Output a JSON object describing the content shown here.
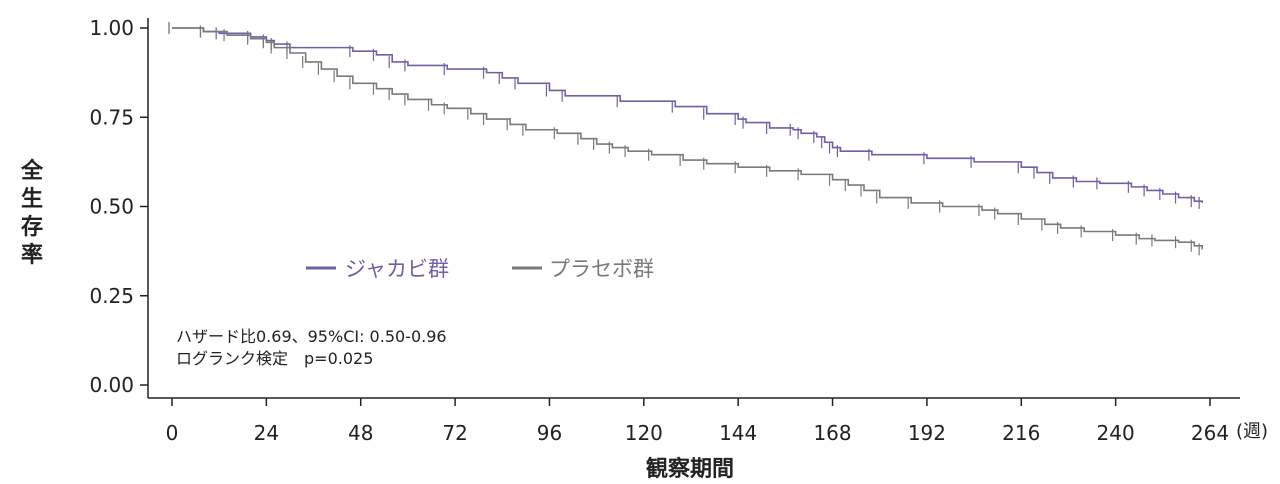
{
  "chart_data": {
    "type": "line",
    "xlabel": "観察期間",
    "xunit": "(週)",
    "ylabel": "全生存率",
    "xlim": [
      0,
      264
    ],
    "ylim": [
      0,
      1
    ],
    "xticks": [
      0,
      24,
      48,
      72,
      96,
      120,
      144,
      168,
      192,
      216,
      240,
      264
    ],
    "yticks": [
      0.0,
      0.25,
      0.5,
      0.75,
      1.0
    ],
    "ytick_labels": [
      "0.00",
      "0.25",
      "0.50",
      "0.75",
      "1.00"
    ],
    "legend_placement": "middle-left",
    "annotations": [
      "ハザード比0.69、95%CI: 0.50-0.96",
      "ログランク検定　p=0.025"
    ],
    "series": [
      {
        "name": "ジャカビ群",
        "color": "#6b62a6",
        "x": [
          0,
          8,
          12,
          20,
          24,
          26,
          30,
          46,
          52,
          56,
          60,
          70,
          80,
          84,
          88,
          96,
          100,
          114,
          128,
          136,
          144,
          146,
          152,
          158,
          160,
          164,
          166,
          168,
          170,
          178,
          192,
          204,
          216,
          220,
          224,
          230,
          236,
          244,
          248,
          252,
          256,
          260,
          262
        ],
        "y": [
          1.0,
          0.99,
          0.985,
          0.975,
          0.965,
          0.955,
          0.945,
          0.935,
          0.925,
          0.905,
          0.895,
          0.885,
          0.875,
          0.86,
          0.845,
          0.825,
          0.81,
          0.795,
          0.78,
          0.76,
          0.745,
          0.735,
          0.72,
          0.715,
          0.705,
          0.695,
          0.68,
          0.665,
          0.655,
          0.645,
          0.635,
          0.625,
          0.61,
          0.595,
          0.58,
          0.57,
          0.565,
          0.555,
          0.545,
          0.535,
          0.525,
          0.515,
          0.51
        ]
      },
      {
        "name": "プラセボ群",
        "color": "#7a7a7a",
        "x": [
          0,
          8,
          14,
          20,
          24,
          26,
          30,
          34,
          38,
          42,
          46,
          52,
          56,
          60,
          66,
          70,
          76,
          80,
          86,
          90,
          98,
          104,
          108,
          112,
          116,
          122,
          130,
          136,
          144,
          152,
          160,
          168,
          172,
          176,
          180,
          188,
          196,
          206,
          210,
          216,
          222,
          226,
          232,
          240,
          246,
          250,
          256,
          260,
          262
        ],
        "y": [
          1.0,
          0.99,
          0.98,
          0.97,
          0.96,
          0.945,
          0.93,
          0.905,
          0.885,
          0.865,
          0.845,
          0.83,
          0.815,
          0.8,
          0.785,
          0.775,
          0.76,
          0.745,
          0.73,
          0.715,
          0.705,
          0.69,
          0.675,
          0.665,
          0.655,
          0.645,
          0.63,
          0.62,
          0.61,
          0.6,
          0.59,
          0.575,
          0.56,
          0.545,
          0.525,
          0.51,
          0.5,
          0.49,
          0.48,
          0.465,
          0.45,
          0.44,
          0.43,
          0.42,
          0.41,
          0.405,
          0.4,
          0.39,
          0.38
        ]
      }
    ]
  }
}
